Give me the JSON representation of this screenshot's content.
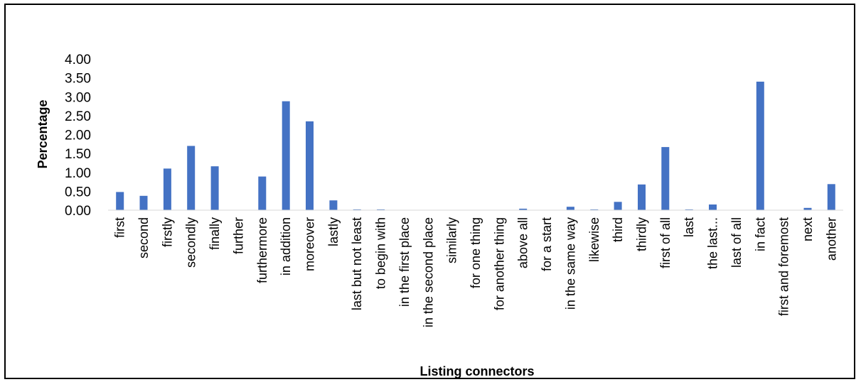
{
  "chart_data": {
    "type": "bar",
    "title": "",
    "xlabel": "Listing connectors",
    "ylabel": "Percentage",
    "ylim": [
      0,
      4
    ],
    "yticks": [
      "0.00",
      "0.50",
      "1.00",
      "1.50",
      "2.00",
      "2.50",
      "3.00",
      "3.50",
      "4.00"
    ],
    "grid": false,
    "legend": "none",
    "bar_color": "#4472C4",
    "categories": [
      "first",
      "second",
      "firstly",
      "secondly",
      "finally",
      "further",
      "furthermore",
      "in addition",
      "moreover",
      "lastly",
      "last but not least",
      "to begin with",
      "in the first place",
      "in the second place",
      "similarly",
      "for one thing",
      "for another thing",
      "above all",
      "for a start",
      "in the same way",
      "likewise",
      "third",
      "thirdly",
      "first of all",
      "last",
      "the last...",
      "last of all",
      "in fact",
      "first and foremost",
      "next",
      "another"
    ],
    "values": [
      0.48,
      0.38,
      1.1,
      1.7,
      1.16,
      0.0,
      0.89,
      2.88,
      2.35,
      0.26,
      0.02,
      0.02,
      0.0,
      0.0,
      0.0,
      0.0,
      0.0,
      0.04,
      0.0,
      0.09,
      0.02,
      0.22,
      0.68,
      1.67,
      0.02,
      0.15,
      0.0,
      3.4,
      0.0,
      0.06,
      0.69
    ]
  }
}
